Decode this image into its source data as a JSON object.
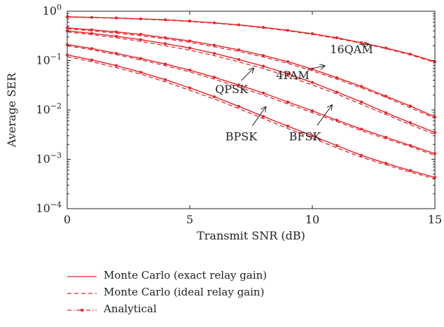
{
  "chart_data": {
    "type": "line",
    "xlabel": "Transmit SNR (dB)",
    "ylabel": "Average SER",
    "xlim": [
      0,
      15
    ],
    "ylim": [
      0.0001,
      1
    ],
    "yscale": "log",
    "grid": false,
    "xticks": [
      0,
      5,
      10,
      15
    ],
    "yticks": [
      {
        "value": 1,
        "base": "10",
        "exp": "0"
      },
      {
        "value": 0.1,
        "base": "10",
        "exp": "−1"
      },
      {
        "value": 0.01,
        "base": "10",
        "exp": "−2"
      },
      {
        "value": 0.001,
        "base": "10",
        "exp": "−3"
      },
      {
        "value": 0.0001,
        "base": "10",
        "exp": "−4"
      }
    ],
    "x": [
      0,
      1,
      2,
      3,
      4,
      5,
      6,
      7,
      8,
      9,
      10,
      11,
      12,
      13,
      14,
      15
    ],
    "legend": [
      {
        "label": "Monte Carlo (exact relay gain)",
        "style": "solid"
      },
      {
        "label": "Monte Carlo (ideal relay gain)",
        "style": "dashed"
      },
      {
        "label": "Analytical",
        "style": "dashdot-marker"
      }
    ],
    "series": [
      {
        "modulation": "16QAM",
        "exact": [
          0.77,
          0.75,
          0.73,
          0.7,
          0.67,
          0.63,
          0.58,
          0.53,
          0.47,
          0.41,
          0.35,
          0.29,
          0.23,
          0.18,
          0.135,
          0.095
        ],
        "ideal": [
          0.76,
          0.74,
          0.72,
          0.69,
          0.66,
          0.62,
          0.57,
          0.52,
          0.46,
          0.4,
          0.34,
          0.28,
          0.225,
          0.175,
          0.13,
          0.092
        ]
      },
      {
        "modulation": "4PAM",
        "exact": [
          0.46,
          0.42,
          0.38,
          0.34,
          0.29,
          0.25,
          0.205,
          0.165,
          0.127,
          0.095,
          0.067,
          0.045,
          0.03,
          0.019,
          0.012,
          0.0072
        ],
        "ideal": [
          0.44,
          0.4,
          0.36,
          0.32,
          0.275,
          0.235,
          0.19,
          0.153,
          0.118,
          0.088,
          0.062,
          0.042,
          0.028,
          0.018,
          0.011,
          0.0068
        ]
      },
      {
        "modulation": "QPSK",
        "exact": [
          0.4,
          0.355,
          0.31,
          0.265,
          0.22,
          0.18,
          0.14,
          0.105,
          0.077,
          0.054,
          0.036,
          0.023,
          0.0145,
          0.0088,
          0.0055,
          0.0035
        ],
        "ideal": [
          0.38,
          0.335,
          0.29,
          0.245,
          0.2,
          0.162,
          0.126,
          0.094,
          0.069,
          0.048,
          0.032,
          0.021,
          0.013,
          0.0081,
          0.005,
          0.0032
        ]
      },
      {
        "modulation": "BFSK",
        "exact": [
          0.21,
          0.175,
          0.14,
          0.11,
          0.085,
          0.064,
          0.046,
          0.032,
          0.022,
          0.0145,
          0.0096,
          0.0062,
          0.0041,
          0.0028,
          0.0019,
          0.0013
        ],
        "ideal": [
          0.2,
          0.165,
          0.132,
          0.103,
          0.079,
          0.059,
          0.042,
          0.029,
          0.02,
          0.0132,
          0.0088,
          0.0058,
          0.0038,
          0.0026,
          0.0018,
          0.0012
        ]
      },
      {
        "modulation": "BPSK",
        "exact": [
          0.13,
          0.103,
          0.079,
          0.058,
          0.041,
          0.028,
          0.0185,
          0.0118,
          0.0074,
          0.0047,
          0.003,
          0.0019,
          0.0012,
          0.00083,
          0.00059,
          0.00043
        ],
        "ideal": [
          0.12,
          0.095,
          0.072,
          0.053,
          0.037,
          0.025,
          0.0167,
          0.0106,
          0.0067,
          0.0042,
          0.0027,
          0.0017,
          0.0011,
          0.00077,
          0.00055,
          0.0004
        ]
      }
    ],
    "annotations": [
      {
        "text": "16QAM",
        "x": 11.6,
        "y": 0.14,
        "arrow_to": [
          12.3,
          0.215
        ]
      },
      {
        "text": "4PAM",
        "x": 9.2,
        "y": 0.042,
        "arrow_to": [
          10.5,
          0.078
        ]
      },
      {
        "text": "QPSK",
        "x": 6.7,
        "y": 0.022,
        "arrow_to": [
          7.6,
          0.07
        ]
      },
      {
        "text": "BFSK",
        "x": 9.7,
        "y": 0.0024,
        "arrow_to": [
          10.8,
          0.0125
        ]
      },
      {
        "text": "BPSK",
        "x": 7.1,
        "y": 0.0024,
        "arrow_to": [
          8.1,
          0.0115
        ]
      }
    ],
    "colors": {
      "curve": "#e8242a",
      "axis": "#222222",
      "text": "#222222"
    }
  }
}
